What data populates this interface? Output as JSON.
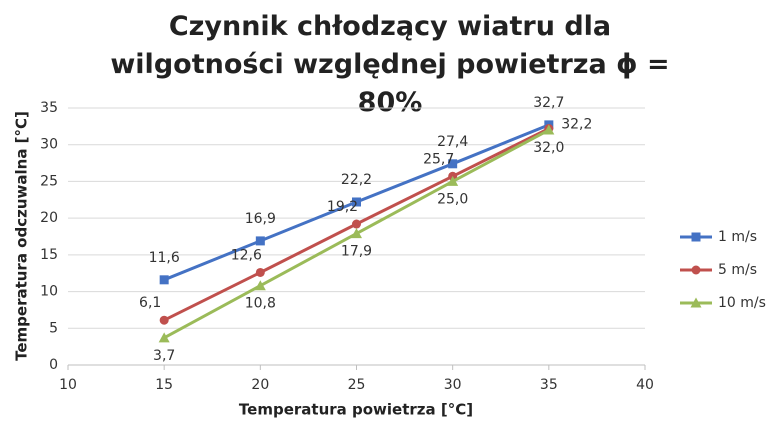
{
  "chart_data": {
    "type": "line",
    "title": "Czynnik chłodzący wiatru dla wilgotności względnej powietrza ϕ = 80%",
    "x_label": "Temperatura powietrza [°C]",
    "y_label": "Temperatura odczuwalna [°C]",
    "x": [
      15,
      20,
      25,
      30,
      35
    ],
    "series": [
      {
        "name": "1 m/s",
        "color": "#4472c4",
        "marker": "square",
        "values": [
          11.6,
          16.9,
          22.2,
          27.4,
          32.7
        ],
        "value_labels": [
          "11,6",
          "16,9",
          "22,2",
          "27,4",
          "32,7"
        ]
      },
      {
        "name": "5 m/s",
        "color": "#c0504d",
        "marker": "circle",
        "values": [
          6.1,
          12.6,
          19.2,
          25.7,
          32.2
        ],
        "value_labels": [
          "6,1",
          "12,6",
          "19,2",
          "25,7",
          "32,2"
        ]
      },
      {
        "name": "10 m/s",
        "color": "#9bbb59",
        "marker": "triangle",
        "values": [
          3.7,
          10.8,
          17.9,
          25.0,
          32.0
        ],
        "value_labels": [
          "3,7",
          "10,8",
          "17,9",
          "25,0",
          "32,0"
        ]
      }
    ],
    "xlim": [
      10,
      40
    ],
    "xticks": [
      10,
      15,
      20,
      25,
      30,
      35,
      40
    ],
    "ylim": [
      0,
      35
    ],
    "yticks": [
      0,
      5,
      10,
      15,
      20,
      25,
      30,
      35
    ],
    "grid": true,
    "legend": "right"
  }
}
